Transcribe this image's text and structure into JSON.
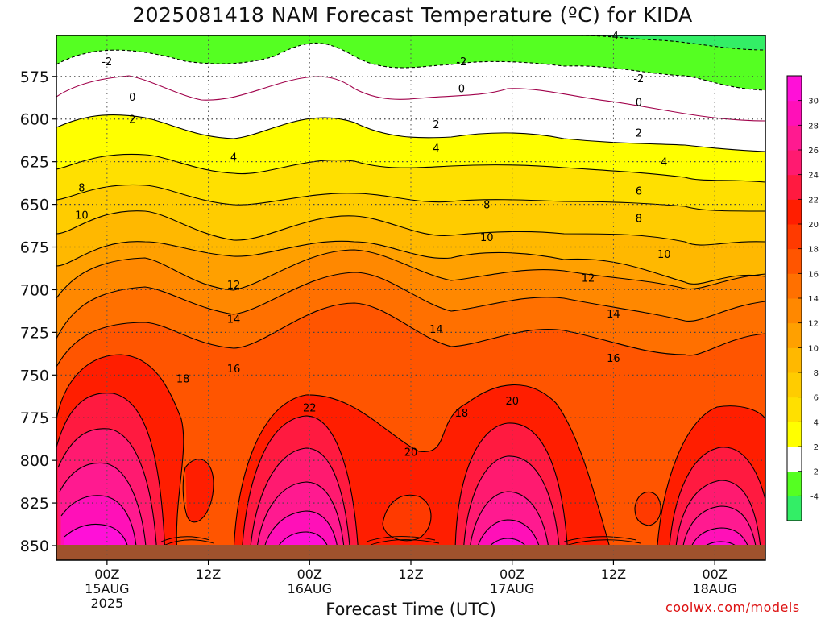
{
  "chart_data": {
    "type": "heatmap",
    "title": "2025081418 NAM Forecast Temperature (ºC) for KIDA",
    "xlabel": "Forecast Time (UTC)",
    "ylabel": "",
    "credit": "coolwx.com/models",
    "y_axis": {
      "scale": "pressure (inverted)",
      "ylim": [
        850,
        550
      ],
      "ticks": [
        575,
        600,
        625,
        650,
        675,
        700,
        725,
        750,
        775,
        800,
        825,
        850
      ],
      "tick_labels": [
        "575",
        "600",
        "625",
        "650",
        "675",
        "700",
        "725",
        "750",
        "775",
        "800",
        "825",
        "850"
      ]
    },
    "x_axis": {
      "start": "2025-08-14 18Z",
      "end": "2025-08-18 06Z",
      "ticks": [
        {
          "time": "2025-08-15 00Z",
          "hour": "00Z",
          "date": "15AUG",
          "year": "2025"
        },
        {
          "time": "2025-08-15 12Z",
          "hour": "12Z",
          "date": "",
          "year": ""
        },
        {
          "time": "2025-08-16 00Z",
          "hour": "00Z",
          "date": "16AUG",
          "year": ""
        },
        {
          "time": "2025-08-16 12Z",
          "hour": "12Z",
          "date": "",
          "year": ""
        },
        {
          "time": "2025-08-17 00Z",
          "hour": "00Z",
          "date": "17AUG",
          "year": ""
        },
        {
          "time": "2025-08-17 12Z",
          "hour": "12Z",
          "date": "",
          "year": ""
        },
        {
          "time": "2025-08-18 00Z",
          "hour": "00Z",
          "date": "18AUG",
          "year": ""
        }
      ]
    },
    "grid": true,
    "colorbar": {
      "levels": [
        -6,
        -4,
        -2,
        2,
        4,
        6,
        8,
        10,
        12,
        14,
        16,
        18,
        20,
        22,
        24,
        26,
        28,
        30,
        32
      ],
      "labels": [
        "-4",
        "-2",
        "2",
        "4",
        "6",
        "8",
        "10",
        "12",
        "14",
        "16",
        "18",
        "20",
        "22",
        "24",
        "26",
        "28",
        "30"
      ],
      "colors": [
        "#33ee66",
        "#55ff22",
        "#ffffff",
        "#ffff00",
        "#ffe000",
        "#ffcc00",
        "#ffb800",
        "#ffa000",
        "#ff8800",
        "#ff7000",
        "#ff5500",
        "#ff3a00",
        "#ff1e00",
        "#ff1a40",
        "#ff1a70",
        "#ff1a90",
        "#ff10b8",
        "#ff10d8"
      ]
    },
    "contour_labels": [
      {
        "value": "-4",
        "time": "2025-08-17 12Z",
        "pressure": 551
      },
      {
        "value": "-2",
        "time": "2025-08-15 00Z",
        "pressure": 566
      },
      {
        "value": "-2",
        "time": "2025-08-16 18Z",
        "pressure": 566
      },
      {
        "value": "-2",
        "time": "2025-08-17 15Z",
        "pressure": 576
      },
      {
        "value": "0",
        "time": "2025-08-15 03Z",
        "pressure": 587
      },
      {
        "value": "0",
        "time": "2025-08-16 18Z",
        "pressure": 582
      },
      {
        "value": "0",
        "time": "2025-08-17 15Z",
        "pressure": 590
      },
      {
        "value": "2",
        "time": "2025-08-15 03Z",
        "pressure": 600
      },
      {
        "value": "2",
        "time": "2025-08-16 15Z",
        "pressure": 603
      },
      {
        "value": "2",
        "time": "2025-08-17 15Z",
        "pressure": 608
      },
      {
        "value": "4",
        "time": "2025-08-15 15Z",
        "pressure": 622
      },
      {
        "value": "4",
        "time": "2025-08-16 15Z",
        "pressure": 617
      },
      {
        "value": "4",
        "time": "2025-08-17 18Z",
        "pressure": 625
      },
      {
        "value": "6",
        "time": "2025-08-17 15Z",
        "pressure": 642
      },
      {
        "value": "8",
        "time": "2025-08-14 21Z",
        "pressure": 640
      },
      {
        "value": "8",
        "time": "2025-08-16 21Z",
        "pressure": 650
      },
      {
        "value": "8",
        "time": "2025-08-17 15Z",
        "pressure": 658
      },
      {
        "value": "10",
        "time": "2025-08-14 21Z",
        "pressure": 656
      },
      {
        "value": "10",
        "time": "2025-08-16 21Z",
        "pressure": 669
      },
      {
        "value": "10",
        "time": "2025-08-17 18Z",
        "pressure": 679
      },
      {
        "value": "12",
        "time": "2025-08-15 15Z",
        "pressure": 697
      },
      {
        "value": "12",
        "time": "2025-08-17 09Z",
        "pressure": 693
      },
      {
        "value": "14",
        "time": "2025-08-15 15Z",
        "pressure": 717
      },
      {
        "value": "14",
        "time": "2025-08-16 15Z",
        "pressure": 723
      },
      {
        "value": "14",
        "time": "2025-08-17 12Z",
        "pressure": 714
      },
      {
        "value": "16",
        "time": "2025-08-15 15Z",
        "pressure": 746
      },
      {
        "value": "16",
        "time": "2025-08-17 12Z",
        "pressure": 740
      },
      {
        "value": "18",
        "time": "2025-08-15 09Z",
        "pressure": 752
      },
      {
        "value": "18",
        "time": "2025-08-16 18Z",
        "pressure": 772
      },
      {
        "value": "20",
        "time": "2025-08-17 00Z",
        "pressure": 765
      },
      {
        "value": "20",
        "time": "2025-08-16 12Z",
        "pressure": 795
      },
      {
        "value": "22",
        "time": "2025-08-16 00Z",
        "pressure": 769
      }
    ],
    "ground_color": "#a0522d"
  }
}
